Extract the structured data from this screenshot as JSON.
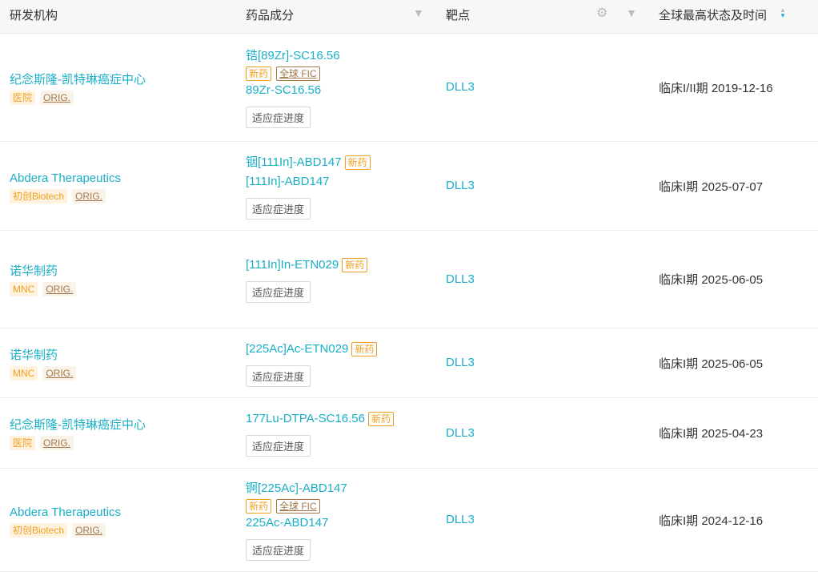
{
  "header": {
    "org": "研发机构",
    "drug": "药品成分",
    "target": "靶点",
    "status": "全球最高状态及时间"
  },
  "colors": {
    "accent": "#1aafc7",
    "tag_orange": "#f0a020",
    "tag_brown": "#a4784a"
  },
  "rows": [
    {
      "org": "纪念斯隆-凯特琳癌症中心",
      "org_tag": "医院",
      "orig": "ORIG.",
      "drug1": "锆[89Zr]-SC16.56",
      "new": "新药",
      "fic": "全球 FIC",
      "drug2": "89Zr-SC16.56",
      "btn": "适应症进度",
      "target": "DLL3",
      "status": "临床I/II期 2019-12-16"
    },
    {
      "org": "Abdera Therapeutics",
      "org_tag": "初创Biotech",
      "orig": "ORIG.",
      "drug1": "铟[111In]-ABD147",
      "new": "新药",
      "drug2": "[111In]-ABD147",
      "btn": "适应症进度",
      "target": "DLL3",
      "status": "临床I期 2025-07-07"
    },
    {
      "org": "诺华制药",
      "org_tag": "MNC",
      "orig": "ORIG.",
      "drug1": "[111In]In-ETN029",
      "new": "新药",
      "btn": "适应症进度",
      "target": "DLL3",
      "status": "临床I期 2025-06-05"
    },
    {
      "org": "诺华制药",
      "org_tag": "MNC",
      "orig": "ORIG.",
      "drug1": "[225Ac]Ac-ETN029",
      "new": "新药",
      "btn": "适应症进度",
      "target": "DLL3",
      "status": "临床I期 2025-06-05"
    },
    {
      "org": "纪念斯隆-凯特琳癌症中心",
      "org_tag": "医院",
      "orig": "ORIG.",
      "drug1": "177Lu-DTPA-SC16.56",
      "new": "新药",
      "btn": "适应症进度",
      "target": "DLL3",
      "status": "临床I期 2025-04-23"
    },
    {
      "org": "Abdera Therapeutics",
      "org_tag": "初创Biotech",
      "orig": "ORIG.",
      "drug1": "锕[225Ac]-ABD147",
      "new": "新药",
      "fic": "全球 FIC",
      "drug2": "225Ac-ABD147",
      "btn": "适应症进度",
      "target": "DLL3",
      "status": "临床I期 2024-12-16"
    }
  ]
}
